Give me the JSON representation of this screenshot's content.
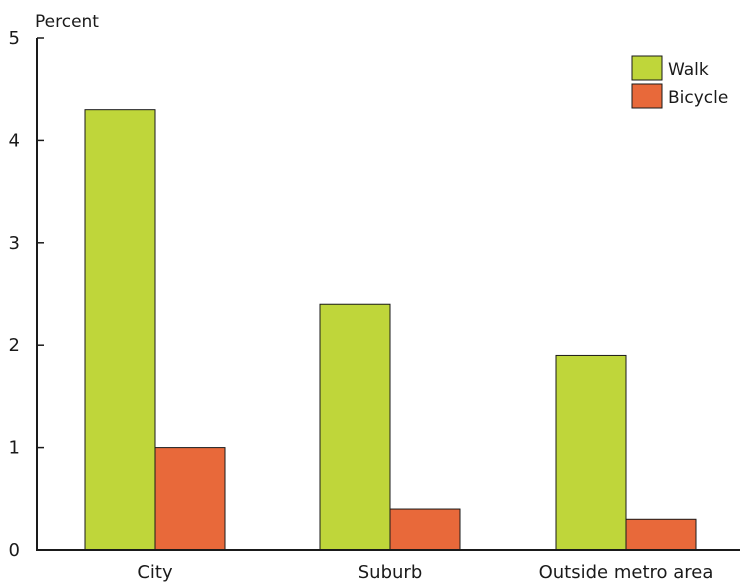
{
  "chart_data": {
    "type": "bar",
    "ylabel": "Percent",
    "ylim": [
      0,
      5
    ],
    "yticks": [
      0,
      1,
      2,
      3,
      4,
      5
    ],
    "categories": [
      "City",
      "Suburb",
      "Outside metro area"
    ],
    "series": [
      {
        "name": "Walk",
        "color": "#bfd63a",
        "values": [
          4.3,
          2.4,
          1.9
        ]
      },
      {
        "name": "Bicycle",
        "color": "#e8693a",
        "values": [
          1.0,
          0.4,
          0.3
        ]
      }
    ],
    "legend_position": "top-right",
    "grid": false
  }
}
